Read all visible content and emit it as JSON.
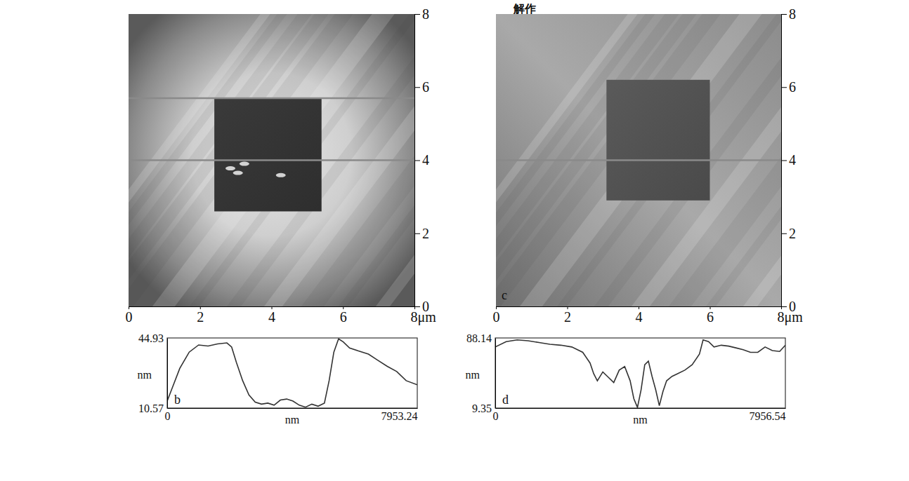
{
  "page_header": "解作",
  "chart_data": [
    {
      "type": "image",
      "xlim": [
        0,
        8
      ],
      "ylim": [
        0,
        8
      ],
      "xticks": [
        0,
        2,
        4,
        6,
        {
          "value": 8,
          "label": "8μm"
        }
      ],
      "yticks": [
        0,
        2,
        4,
        6,
        8
      ],
      "pit": {
        "x": [
          2.4,
          5.4
        ],
        "y": [
          2.6,
          5.7
        ]
      },
      "scan_lines": [
        4.0,
        5.7
      ]
    },
    {
      "type": "image",
      "panel": "c",
      "xlim": [
        0,
        8
      ],
      "ylim": [
        0,
        8
      ],
      "xticks": [
        0,
        2,
        4,
        6,
        {
          "value": 8,
          "label": "8μm"
        }
      ],
      "yticks": [
        0,
        2,
        4,
        6,
        8
      ],
      "pit": {
        "x": [
          3.1,
          6.0
        ],
        "y": [
          2.9,
          6.2
        ]
      },
      "scan_lines": [
        4.0
      ]
    },
    {
      "type": "line",
      "panel": "b",
      "x_label": "nm",
      "y_label": "nm",
      "color": "#333333",
      "xlim": [
        0,
        7953.24
      ],
      "ylim": [
        10.57,
        44.93
      ],
      "xticks": [
        0,
        7953.24
      ],
      "yticks": [
        10.57,
        44.93
      ],
      "x": [
        0,
        150,
        400,
        700,
        1000,
        1300,
        1600,
        1900,
        2050,
        2200,
        2400,
        2600,
        2800,
        3000,
        3200,
        3400,
        3600,
        3800,
        4000,
        4200,
        4400,
        4600,
        4800,
        5000,
        5150,
        5300,
        5450,
        5600,
        5800,
        6100,
        6400,
        6700,
        7000,
        7300,
        7600,
        7953.24
      ],
      "values": [
        14,
        20,
        30,
        38,
        41.5,
        41,
        42,
        42.5,
        40.5,
        33,
        24,
        17,
        13.5,
        12.5,
        13,
        12,
        14.5,
        15,
        14,
        12,
        11,
        12.5,
        11.5,
        13,
        24,
        38,
        44.5,
        43,
        40,
        38.5,
        37,
        34,
        31,
        28.5,
        24,
        22
      ]
    },
    {
      "type": "line",
      "panel": "d",
      "x_label": "nm",
      "y_label": "nm",
      "color": "#333333",
      "xlim": [
        0,
        7956.54
      ],
      "ylim": [
        9.35,
        88.14
      ],
      "xticks": [
        0,
        7956.54
      ],
      "yticks": [
        9.35,
        88.14
      ],
      "x": [
        0,
        300,
        600,
        900,
        1200,
        1500,
        1800,
        2100,
        2400,
        2600,
        2700,
        2800,
        2950,
        3100,
        3250,
        3400,
        3550,
        3700,
        3800,
        3900,
        4000,
        4100,
        4200,
        4300,
        4400,
        4500,
        4600,
        4700,
        4850,
        5000,
        5200,
        5400,
        5600,
        5700,
        5850,
        6000,
        6200,
        6400,
        6600,
        6800,
        7000,
        7200,
        7400,
        7600,
        7800,
        7956.54
      ],
      "values": [
        78,
        84,
        86,
        85,
        83,
        81,
        80,
        78,
        72,
        60,
        48,
        40,
        50,
        44,
        38,
        52,
        56,
        40,
        20,
        10,
        30,
        58,
        62,
        45,
        30,
        12,
        28,
        40,
        45,
        48,
        52,
        58,
        70,
        86,
        84,
        78,
        80,
        79,
        77,
        75,
        72,
        72,
        78,
        74,
        73,
        80
      ]
    }
  ]
}
